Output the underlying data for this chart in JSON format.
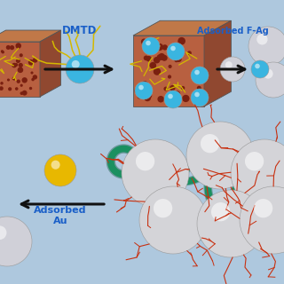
{
  "bg_color": "#aec8de",
  "arrow_color": "#111111",
  "label_color": "#1a5fc8",
  "label_DMTD": "DMTD",
  "label_FAg": "Adsorbed F-Ag",
  "label_Au": "Adsorbed\nAu",
  "cube_face": "#b86040",
  "cube_top": "#c07848",
  "cube_side": "#904830",
  "cube_spot": "#7a2010",
  "cube_fiber": "#d4b800",
  "cyan_ball": "#3ab5e0",
  "silver_ball": "#d0d0d8",
  "gold_ball": "#e8b800",
  "green_tube": "#1a9060",
  "green_dark": "#0a5038",
  "red_branch": "#c83010"
}
